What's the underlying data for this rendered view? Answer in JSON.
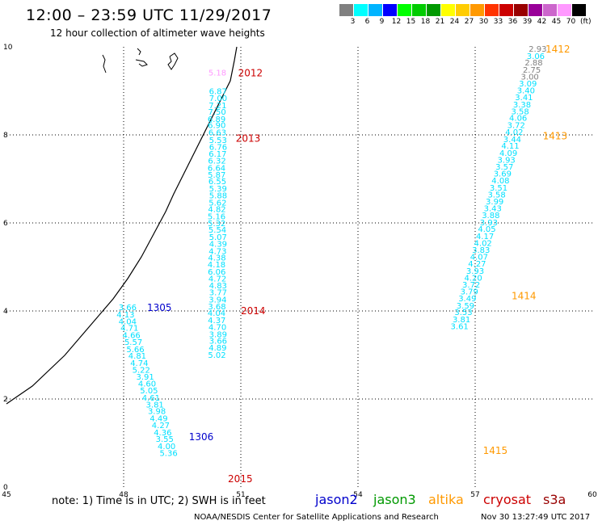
{
  "header": {
    "title": "12:00 – 23:59 UTC 11/29/2017",
    "subtitle": "12 hour collection of altimeter wave heights"
  },
  "color_scale": {
    "unit": "(ft)",
    "items": [
      {
        "label": "3",
        "color": "#808080"
      },
      {
        "label": "6",
        "color": "#00ffff"
      },
      {
        "label": "9",
        "color": "#00b4ff"
      },
      {
        "label": "12",
        "color": "#0000ff"
      },
      {
        "label": "15",
        "color": "#00ff00"
      },
      {
        "label": "18",
        "color": "#00cc00"
      },
      {
        "label": "21",
        "color": "#009900"
      },
      {
        "label": "24",
        "color": "#ffff00"
      },
      {
        "label": "27",
        "color": "#ffcc00"
      },
      {
        "label": "30",
        "color": "#ff9900"
      },
      {
        "label": "33",
        "color": "#ff3300"
      },
      {
        "label": "36",
        "color": "#cc0000"
      },
      {
        "label": "39",
        "color": "#990000"
      },
      {
        "label": "42",
        "color": "#990099"
      },
      {
        "label": "45",
        "color": "#cc66cc"
      },
      {
        "label": "70",
        "color": "#ff99ff"
      },
      {
        "label": "",
        "color": "#000000"
      }
    ]
  },
  "chart_data": {
    "type": "scatter",
    "xlim": [
      45,
      60
    ],
    "ylim": [
      0,
      10
    ],
    "xticks": [
      "45",
      "48",
      "51",
      "54",
      "57",
      "60"
    ],
    "yticks": [
      "0",
      "2",
      "4",
      "6",
      "8",
      "10"
    ],
    "grid": true,
    "coastline": [
      [
        59,
        0
      ],
      [
        40,
        78
      ],
      [
        31,
        96
      ],
      [
        29,
        116
      ],
      [
        31,
        143
      ],
      [
        46,
        268
      ],
      [
        51,
        277
      ],
      [
        49,
        290
      ],
      [
        54,
        300
      ],
      [
        55,
        317
      ],
      [
        53,
        332
      ],
      [
        57,
        348
      ],
      [
        56,
        360
      ],
      [
        61,
        369
      ],
      [
        68,
        380
      ],
      [
        74,
        388
      ],
      [
        82,
        393
      ],
      [
        86,
        406
      ],
      [
        94,
        410
      ]
    ],
    "passes": [
      {
        "pass": "2012",
        "mission": "s3a",
        "label_x": 50.93,
        "label_y": 9.42,
        "color": "#cc0000"
      },
      {
        "pass": "2013",
        "mission": "s3a",
        "label_x": 50.87,
        "label_y": 7.94,
        "color": "#cc0000"
      },
      {
        "pass": "2014",
        "mission": "s3a",
        "label_x": 51.0,
        "label_y": 4.02,
        "color": "#cc0000"
      },
      {
        "pass": "2015",
        "mission": "s3a",
        "label_x": 50.67,
        "label_y": 0.2,
        "color": "#cc0000"
      },
      {
        "pass": "1305",
        "mission": "jason2",
        "label_x": 48.6,
        "label_y": 4.09,
        "color": "#0000cc"
      },
      {
        "pass": "1306",
        "mission": "jason2",
        "label_x": 49.67,
        "label_y": 1.16,
        "color": "#0000cc"
      },
      {
        "pass": "1412",
        "mission": "altika",
        "label_x": 58.8,
        "label_y": 9.96,
        "color": "#ff9900"
      },
      {
        "pass": "1413",
        "mission": "altika",
        "label_x": 58.73,
        "label_y": 7.99,
        "color": "#ff9900"
      },
      {
        "pass": "1414",
        "mission": "altika",
        "label_x": 57.93,
        "label_y": 4.36,
        "color": "#ff9900"
      },
      {
        "pass": "1415",
        "mission": "altika",
        "label_x": 57.2,
        "label_y": 0.84,
        "color": "#ff9900"
      }
    ],
    "tracks": [
      {
        "name": "s3a-2012-2015",
        "label_x": 50.4,
        "heights": [
          {
            "v": "5.18",
            "y": 9.42,
            "color": "#ff99ff"
          },
          {
            "v": "6.87",
            "y": 9.0,
            "color": "#00e0ff"
          },
          {
            "v": "7.00",
            "y": 8.84
          },
          {
            "v": "7.21",
            "y": 8.68
          },
          {
            "v": "7.50",
            "y": 8.53
          },
          {
            "v": "6.89",
            "y": 8.37
          },
          {
            "v": "6.90",
            "y": 8.23
          },
          {
            "v": "6.63",
            "y": 8.06
          },
          {
            "v": "5.53",
            "y": 7.89
          },
          {
            "v": "6.76",
            "y": 7.73
          },
          {
            "v": "6.17",
            "y": 7.58
          },
          {
            "v": "6.32",
            "y": 7.42
          },
          {
            "v": "6.64",
            "y": 7.26
          },
          {
            "v": "5.87",
            "y": 7.1
          },
          {
            "v": "6.55",
            "y": 6.95
          },
          {
            "v": "5.39",
            "y": 6.79
          },
          {
            "v": "5.88",
            "y": 6.63
          },
          {
            "v": "5.62",
            "y": 6.47
          },
          {
            "v": "4.82",
            "y": 6.32
          },
          {
            "v": "5.16",
            "y": 6.16
          },
          {
            "v": "5.32",
            "y": 6.0
          },
          {
            "v": "5.54",
            "y": 5.85
          },
          {
            "v": "5.07",
            "y": 5.69
          },
          {
            "v": "4.39",
            "y": 5.53
          },
          {
            "v": "4.73",
            "y": 5.37
          },
          {
            "v": "4.38",
            "y": 5.22
          },
          {
            "v": "4.18",
            "y": 5.06
          },
          {
            "v": "6.06",
            "y": 4.9
          },
          {
            "v": "4.72",
            "y": 4.74
          },
          {
            "v": "4.83",
            "y": 4.59
          },
          {
            "v": "3.77",
            "y": 4.43
          },
          {
            "v": "3.94",
            "y": 4.27
          },
          {
            "v": "3.68",
            "y": 4.11
          },
          {
            "v": "4.04",
            "y": 3.96
          },
          {
            "v": "4.37",
            "y": 3.8
          },
          {
            "v": "4.70",
            "y": 3.64
          },
          {
            "v": "3.89",
            "y": 3.48
          },
          {
            "v": "3.66",
            "y": 3.33
          },
          {
            "v": "4.89",
            "y": 3.17
          },
          {
            "v": "5.02",
            "y": 3.01
          }
        ]
      },
      {
        "name": "jason2-1305-1306",
        "heights": [
          {
            "v": "3.66",
            "x": 48.1,
            "y": 4.09
          },
          {
            "v": "4.13",
            "x": 48.05,
            "y": 3.93
          },
          {
            "v": "4.04",
            "x": 48.1,
            "y": 3.77
          },
          {
            "v": "4.71",
            "x": 48.15,
            "y": 3.62
          },
          {
            "v": "4.66",
            "x": 48.2,
            "y": 3.46
          },
          {
            "v": "5.57",
            "x": 48.25,
            "y": 3.3
          },
          {
            "v": "5.66",
            "x": 48.3,
            "y": 3.14
          },
          {
            "v": "4.81",
            "x": 48.35,
            "y": 2.99
          },
          {
            "v": "4.74",
            "x": 48.4,
            "y": 2.83
          },
          {
            "v": "5.22",
            "x": 48.45,
            "y": 2.67
          },
          {
            "v": "3.91",
            "x": 48.55,
            "y": 2.51
          },
          {
            "v": "4.60",
            "x": 48.6,
            "y": 2.36
          },
          {
            "v": "5.05",
            "x": 48.65,
            "y": 2.2
          },
          {
            "v": "4.61",
            "x": 48.7,
            "y": 2.04
          },
          {
            "v": "3.81",
            "x": 48.8,
            "y": 1.88
          },
          {
            "v": "3.98",
            "x": 48.85,
            "y": 1.73
          },
          {
            "v": "4.49",
            "x": 48.9,
            "y": 1.57
          },
          {
            "v": "4.27",
            "x": 48.95,
            "y": 1.41
          },
          {
            "v": "4.36",
            "x": 49.0,
            "y": 1.25
          },
          {
            "v": "3.55",
            "x": 49.05,
            "y": 1.1
          },
          {
            "v": "4.00",
            "x": 49.1,
            "y": 0.94
          },
          {
            "v": "5.36",
            "x": 49.15,
            "y": 0.78
          }
        ]
      },
      {
        "name": "altika-1412-1415",
        "heights": [
          {
            "v": "2.93",
            "x": 58.6,
            "y": 9.96,
            "color": "#808080"
          },
          {
            "v": "3.06",
            "x": 58.55,
            "y": 9.8,
            "color": "#00e0ff"
          },
          {
            "v": "2.88",
            "x": 58.5,
            "y": 9.65,
            "color": "#808080"
          },
          {
            "v": "2.75",
            "x": 58.45,
            "y": 9.49,
            "color": "#808080"
          },
          {
            "v": "3.00",
            "x": 58.4,
            "y": 9.33,
            "color": "#808080"
          },
          {
            "v": "3.09",
            "x": 58.35,
            "y": 9.17
          },
          {
            "v": "3.40",
            "x": 58.3,
            "y": 9.02
          },
          {
            "v": "3.41",
            "x": 58.25,
            "y": 8.86
          },
          {
            "v": "3.38",
            "x": 58.2,
            "y": 8.7
          },
          {
            "v": "3.58",
            "x": 58.15,
            "y": 8.54
          },
          {
            "v": "4.06",
            "x": 58.1,
            "y": 8.39
          },
          {
            "v": "3.72",
            "x": 58.05,
            "y": 8.23
          },
          {
            "v": "4.02",
            "x": 58.0,
            "y": 8.07
          },
          {
            "v": "3.44",
            "x": 57.95,
            "y": 7.91
          },
          {
            "v": "4.11",
            "x": 57.9,
            "y": 7.76
          },
          {
            "v": "4.09",
            "x": 57.85,
            "y": 7.6
          },
          {
            "v": "3.93",
            "x": 57.8,
            "y": 7.44
          },
          {
            "v": "3.57",
            "x": 57.75,
            "y": 7.28
          },
          {
            "v": "3.69",
            "x": 57.7,
            "y": 7.13
          },
          {
            "v": "4.08",
            "x": 57.65,
            "y": 6.97
          },
          {
            "v": "3.51",
            "x": 57.6,
            "y": 6.81
          },
          {
            "v": "3.58",
            "x": 57.55,
            "y": 6.65
          },
          {
            "v": "3.99",
            "x": 57.5,
            "y": 6.5
          },
          {
            "v": "3.43",
            "x": 57.45,
            "y": 6.34
          },
          {
            "v": "3.88",
            "x": 57.4,
            "y": 6.18
          },
          {
            "v": "3.93",
            "x": 57.35,
            "y": 6.02
          },
          {
            "v": "4.05",
            "x": 57.3,
            "y": 5.87
          },
          {
            "v": "4.17",
            "x": 57.25,
            "y": 5.71
          },
          {
            "v": "4.02",
            "x": 57.2,
            "y": 5.55
          },
          {
            "v": "3.83",
            "x": 57.15,
            "y": 5.39
          },
          {
            "v": "4.07",
            "x": 57.1,
            "y": 5.24
          },
          {
            "v": "4.27",
            "x": 57.05,
            "y": 5.08
          },
          {
            "v": "3.93",
            "x": 57.0,
            "y": 4.92
          },
          {
            "v": "4.20",
            "x": 56.95,
            "y": 4.76
          },
          {
            "v": "3.72",
            "x": 56.9,
            "y": 4.61
          },
          {
            "v": "3.79",
            "x": 56.85,
            "y": 4.45
          },
          {
            "v": "3.49",
            "x": 56.8,
            "y": 4.29
          },
          {
            "v": "3.59",
            "x": 56.75,
            "y": 4.13
          },
          {
            "v": "3.53",
            "x": 56.7,
            "y": 3.98
          },
          {
            "v": "3.81",
            "x": 56.65,
            "y": 3.82
          },
          {
            "v": "3.61",
            "x": 56.6,
            "y": 3.66
          }
        ]
      }
    ]
  },
  "footer": {
    "note": "note: 1) Time is in UTC; 2) SWH is in feet",
    "legend": [
      {
        "label": "jason2",
        "color": "#0000cc"
      },
      {
        "label": "jason3",
        "color": "#009900"
      },
      {
        "label": "altika",
        "color": "#ff9900"
      },
      {
        "label": "cryosat",
        "color": "#cc0000"
      },
      {
        "label": "s3a",
        "color": "#990000"
      }
    ],
    "credit": "NOAA/NESDIS Center for Satellite Applications and Research",
    "timestamp": "Nov 30 13:27:49 UTC 2017"
  }
}
